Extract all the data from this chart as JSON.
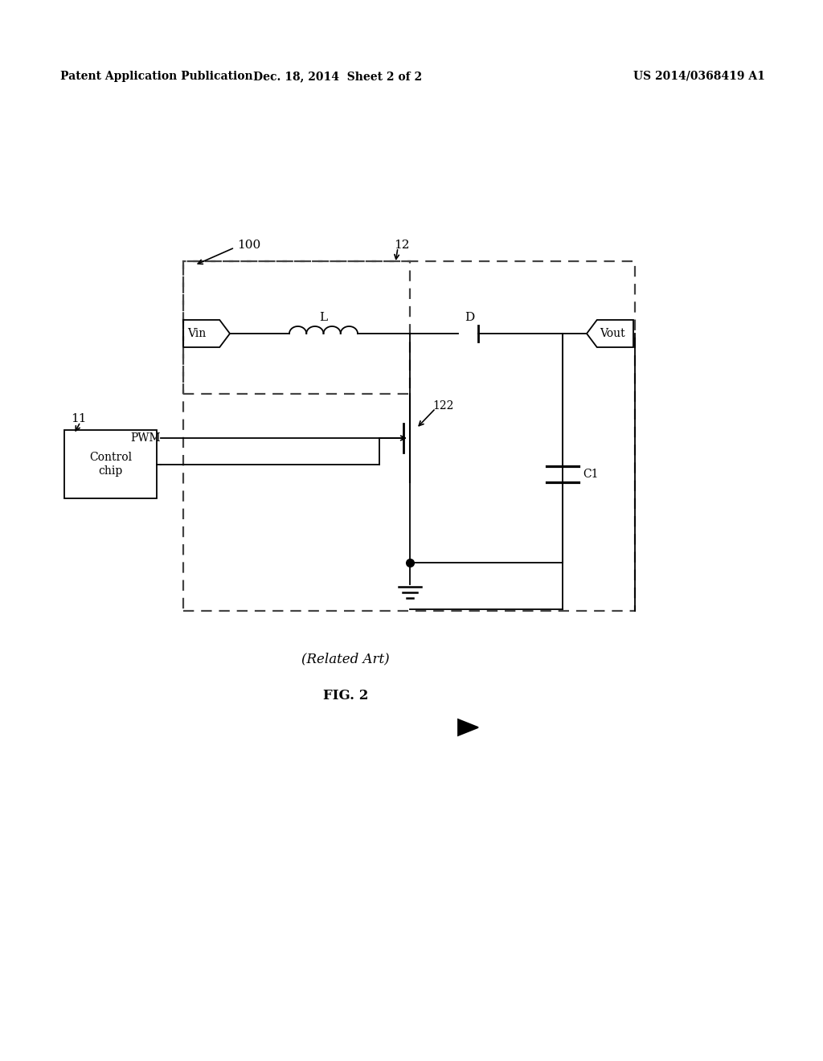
{
  "title_left": "Patent Application Publication",
  "title_mid": "Dec. 18, 2014  Sheet 2 of 2",
  "title_right": "US 2014/0368419 A1",
  "caption1": "(Related Art)",
  "caption2": "FIG. 2",
  "label_100": "100",
  "label_12": "12",
  "label_11": "11",
  "label_L": "L",
  "label_D": "D",
  "label_C1": "C1",
  "label_Vin": "Vin",
  "label_Vout": "Vout",
  "label_PWM": "PWM",
  "label_122": "122",
  "label_controlchip": "Control\nchip",
  "bg_color": "#ffffff",
  "line_color": "#000000"
}
